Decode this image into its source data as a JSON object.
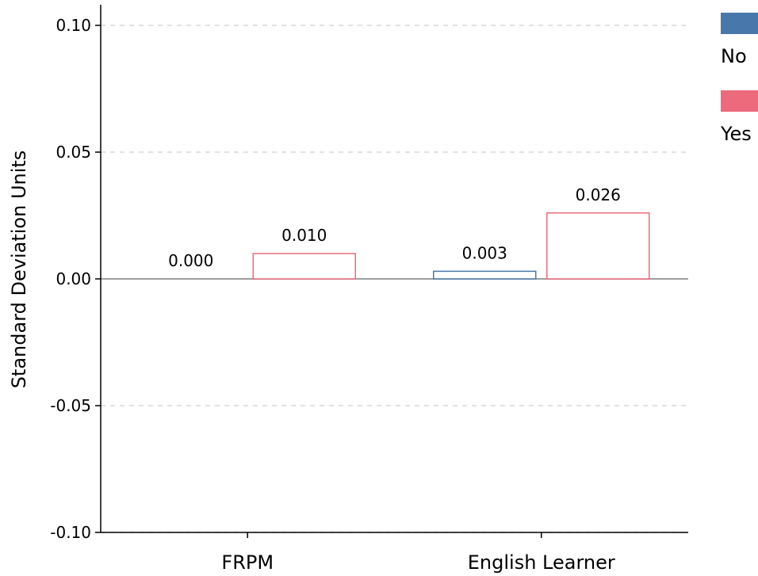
{
  "chart_data": {
    "type": "bar",
    "ylabel": "Standard Deviation Units",
    "ylim": [
      -0.1,
      0.1
    ],
    "yticks": [
      "0.10",
      "0.05",
      "0.00",
      "-0.05",
      "-0.10"
    ],
    "categories": [
      "FRPM",
      "English Learner"
    ],
    "grid": "horizontal dashed",
    "legend_position": "top-right",
    "series": [
      {
        "name": "No",
        "color": "#4878ab",
        "values": [
          0.0,
          0.003
        ],
        "labels": [
          "0.000",
          "0.003"
        ]
      },
      {
        "name": "Yes",
        "color": "#ec6a7c",
        "values": [
          0.01,
          0.026
        ],
        "labels": [
          "0.010",
          "0.026"
        ]
      }
    ]
  }
}
